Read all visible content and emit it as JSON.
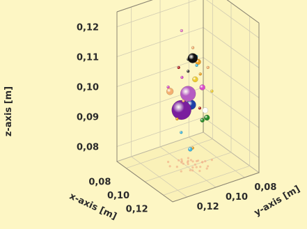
{
  "chart_data": {
    "type": "scatter",
    "projection": "3d",
    "title": "",
    "xlabel": "x-axis [m]",
    "ylabel": "y-axis [m]",
    "zlabel": "z-axis [m]",
    "xlim": [
      0.07,
      0.13
    ],
    "ylim": [
      0.07,
      0.13
    ],
    "zlim": [
      0.075,
      0.125
    ],
    "x_ticks": [
      "0,08",
      "0,10",
      "0,12"
    ],
    "y_ticks": [
      "0,08",
      "0,10",
      "0,12"
    ],
    "z_ticks": [
      "0,08",
      "0,09",
      "0,10",
      "0,11",
      "0,12"
    ],
    "grid": true,
    "background_color": "#fdf6c4",
    "projection_shadow_color": "#f2b48c",
    "points": [
      {
        "x": 0.102,
        "y": 0.098,
        "z": 0.1115,
        "size": 7,
        "color": "#111111"
      },
      {
        "x": 0.097,
        "y": 0.098,
        "z": 0.0985,
        "size": 11,
        "color": "#b55cc2"
      },
      {
        "x": 0.093,
        "y": 0.1,
        "z": 0.0925,
        "size": 14,
        "color": "#7a1e9e"
      },
      {
        "x": 0.094,
        "y": 0.094,
        "z": 0.0935,
        "size": 7,
        "color": "#1e3fa8"
      },
      {
        "x": 0.1,
        "y": 0.09,
        "z": 0.1,
        "size": 4,
        "color": "#d94ac8"
      },
      {
        "x": 0.097,
        "y": 0.091,
        "z": 0.108,
        "size": 4,
        "color": "#f0a020"
      },
      {
        "x": 0.1,
        "y": 0.095,
        "z": 0.1035,
        "size": 4,
        "color": "#eecc30"
      },
      {
        "x": 0.093,
        "y": 0.108,
        "z": 0.1,
        "size": 5,
        "color": "#f5b070"
      },
      {
        "x": 0.108,
        "y": 0.092,
        "z": 0.092,
        "size": 4,
        "color": "#2a8a2a"
      },
      {
        "x": 0.095,
        "y": 0.097,
        "z": 0.0935,
        "size": 3,
        "color": "#b02020"
      },
      {
        "x": 0.1,
        "y": 0.088,
        "z": 0.092,
        "size": 4,
        "color": "#ffffff"
      },
      {
        "x": 0.1,
        "y": 0.09,
        "z": 0.089,
        "size": 3,
        "color": "#2a8a2a"
      },
      {
        "x": 0.104,
        "y": 0.101,
        "z": 0.082,
        "size": 3,
        "color": "#40b8e0"
      },
      {
        "x": 0.105,
        "y": 0.1,
        "z": 0.0825,
        "size": 2,
        "color": "#f0a020"
      },
      {
        "x": 0.097,
        "y": 0.092,
        "z": 0.107,
        "size": 2,
        "color": "#40b8e0"
      },
      {
        "x": 0.09,
        "y": 0.098,
        "z": 0.118,
        "size": 2,
        "color": "#e878c8"
      },
      {
        "x": 0.103,
        "y": 0.096,
        "z": 0.112,
        "size": 2,
        "color": "#40b8e0"
      },
      {
        "x": 0.104,
        "y": 0.094,
        "z": 0.106,
        "size": 2,
        "color": "#f0a020"
      },
      {
        "x": 0.09,
        "y": 0.1,
        "z": 0.106,
        "size": 2,
        "color": "#b02020"
      },
      {
        "x": 0.092,
        "y": 0.099,
        "z": 0.103,
        "size": 2,
        "color": "#d94ac8"
      },
      {
        "x": 0.094,
        "y": 0.096,
        "z": 0.105,
        "size": 2,
        "color": "#3a3a3a"
      },
      {
        "x": 0.095,
        "y": 0.1,
        "z": 0.096,
        "size": 2,
        "color": "#f5b070"
      },
      {
        "x": 0.088,
        "y": 0.106,
        "z": 0.1,
        "size": 2,
        "color": "#d94ac8"
      },
      {
        "x": 0.096,
        "y": 0.105,
        "z": 0.091,
        "size": 2,
        "color": "#f0a020"
      },
      {
        "x": 0.108,
        "y": 0.097,
        "z": 0.096,
        "size": 2,
        "color": "#b02020"
      },
      {
        "x": 0.101,
        "y": 0.084,
        "z": 0.098,
        "size": 2,
        "color": "#eecc30"
      },
      {
        "x": 0.091,
        "y": 0.094,
        "z": 0.108,
        "size": 2,
        "color": "#3a3a3a"
      },
      {
        "x": 0.106,
        "y": 0.09,
        "z": 0.108,
        "size": 2,
        "color": "#f5b070"
      },
      {
        "x": 0.102,
        "y": 0.106,
        "z": 0.088,
        "size": 2,
        "color": "#40b8e0"
      },
      {
        "x": 0.096,
        "y": 0.094,
        "z": 0.113,
        "size": 2,
        "color": "#f5b070"
      }
    ]
  }
}
